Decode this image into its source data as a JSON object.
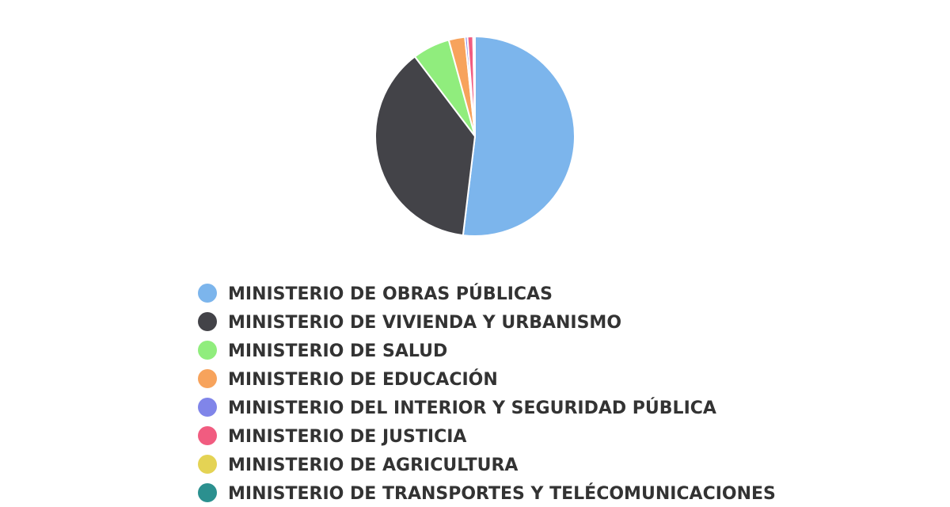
{
  "chart_data": {
    "type": "pie",
    "title": "",
    "legend_position": "bottom",
    "slices": [
      {
        "label": "MINISTERIO DE OBRAS PÚBLICAS",
        "value": 51.4,
        "color": "#7cb5ec"
      },
      {
        "label": "MINISTERIO DE VIVIENDA Y URBANISMO",
        "value": 37.4,
        "color": "#434348"
      },
      {
        "label": "MINISTERIO DE SALUD",
        "value": 6.0,
        "color": "#90ed7d"
      },
      {
        "label": "MINISTERIO DE EDUCACIÓN",
        "value": 2.6,
        "color": "#f7a35c"
      },
      {
        "label": "MINISTERIO DEL INTERIOR Y SEGURIDAD PÚBLICA",
        "value": 0.4,
        "color": "#8085e9"
      },
      {
        "label": "MINISTERIO DE JUSTICIA",
        "value": 0.9,
        "color": "#f15c80"
      },
      {
        "label": "MINISTERIO DE AGRICULTURA",
        "value": 0.2,
        "color": "#e4d354"
      },
      {
        "label": "MINISTERIO DE TRANSPORTES Y TELÉCOMUNICACIONES",
        "value": 0.1,
        "color": "#2b908f"
      }
    ]
  }
}
